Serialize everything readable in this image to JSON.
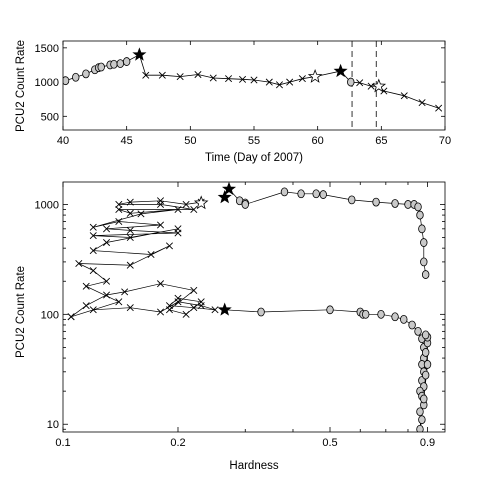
{
  "chart_data": [
    {
      "type": "line",
      "xlabel": "Time (Day of 2007)",
      "ylabel": "PCU2 Count Rate",
      "xlim": [
        40,
        70
      ],
      "ylim": [
        300,
        1600
      ],
      "xticks": [
        "40",
        "45",
        "50",
        "55",
        "60",
        "65",
        "70"
      ],
      "yticks": [
        "500",
        "1000",
        "1500"
      ],
      "vlines": [
        62.7,
        64.6
      ],
      "series": [
        {
          "marker": "circle",
          "x": [
            40.2,
            41.0,
            41.8,
            42.5,
            42.8,
            43.0,
            43.7,
            44.0,
            44.5,
            45.0
          ],
          "y": [
            1020,
            1070,
            1120,
            1180,
            1210,
            1220,
            1250,
            1260,
            1270,
            1300
          ]
        },
        {
          "marker": "x",
          "x": [
            46.5,
            47.8,
            49.2,
            50.6,
            51.8,
            53.0,
            54.1,
            55.0,
            56.2,
            57.0,
            57.8,
            58.8,
            63.3,
            64.2,
            65.2,
            66.8,
            68.2,
            69.5
          ],
          "y": [
            1100,
            1100,
            1080,
            1110,
            1060,
            1050,
            1040,
            1030,
            1000,
            960,
            1000,
            1050,
            990,
            940,
            870,
            800,
            700,
            620
          ]
        },
        {
          "marker": "filled-star",
          "x": [
            46.0,
            61.8
          ],
          "y": [
            1400,
            1160
          ]
        },
        {
          "marker": "open-star",
          "x": [
            59.8,
            64.8
          ],
          "y": [
            1080,
            940
          ]
        },
        {
          "marker": "circle",
          "x": [
            62.6
          ],
          "y": [
            1000
          ]
        }
      ]
    },
    {
      "type": "scatter",
      "xlabel": "Hardness",
      "ylabel": "PCU2 Count Rate",
      "xscale": "log",
      "yscale": "log",
      "xlim": [
        0.1,
        1.0
      ],
      "ylim": [
        8.5,
        1600
      ],
      "xticks": [
        "0.1",
        "0.2",
        "0.5",
        "0.9"
      ],
      "yticks": [
        "10",
        "100",
        "1000"
      ],
      "series": [
        {
          "marker": "x",
          "points": [
            [
              0.105,
              95
            ],
            [
              0.115,
              120
            ],
            [
              0.13,
              150
            ],
            [
              0.145,
              160
            ],
            [
              0.18,
              190
            ],
            [
              0.22,
              165
            ],
            [
              0.19,
              110
            ],
            [
              0.21,
              100
            ],
            [
              0.23,
              130
            ],
            [
              0.2,
              140
            ],
            [
              0.19,
              120
            ],
            [
              0.22,
              115
            ],
            [
              0.25,
              110
            ],
            [
              0.23,
              120
            ],
            [
              0.2,
              130
            ],
            [
              0.18,
              105
            ],
            [
              0.15,
              115
            ],
            [
              0.12,
              110
            ],
            [
              0.105,
              95
            ],
            [
              0.14,
              130
            ],
            [
              0.115,
              180
            ],
            [
              0.13,
              200
            ],
            [
              0.12,
              250
            ],
            [
              0.11,
              290
            ],
            [
              0.15,
              280
            ],
            [
              0.19,
              420
            ],
            [
              0.17,
              350
            ],
            [
              0.12,
              380
            ],
            [
              0.13,
              450
            ],
            [
              0.2,
              600
            ],
            [
              0.15,
              500
            ],
            [
              0.12,
              520
            ],
            [
              0.2,
              550
            ],
            [
              0.15,
              580
            ],
            [
              0.13,
              600
            ],
            [
              0.18,
              650
            ],
            [
              0.14,
              700
            ],
            [
              0.12,
              620
            ],
            [
              0.16,
              820
            ],
            [
              0.2,
              900
            ],
            [
              0.15,
              830
            ],
            [
              0.14,
              900
            ],
            [
              0.22,
              900
            ],
            [
              0.18,
              1000
            ],
            [
              0.14,
              1000
            ],
            [
              0.15,
              1050
            ],
            [
              0.18,
              1080
            ],
            [
              0.21,
              1000
            ],
            [
              0.23,
              1050
            ]
          ]
        },
        {
          "marker": "filled-star",
          "points": [
            [
              0.272,
              1380
            ],
            [
              0.265,
              1160
            ],
            [
              0.265,
              110
            ]
          ]
        },
        {
          "marker": "open-star",
          "points": [
            [
              0.23,
              1030
            ]
          ]
        },
        {
          "marker": "circle",
          "points": [
            [
              0.29,
              1080
            ],
            [
              0.3,
              1030
            ],
            [
              0.3,
              1000
            ],
            [
              0.38,
              1300
            ],
            [
              0.42,
              1250
            ],
            [
              0.46,
              1250
            ],
            [
              0.48,
              1230
            ],
            [
              0.57,
              1100
            ],
            [
              0.66,
              1050
            ],
            [
              0.74,
              1020
            ],
            [
              0.8,
              1000
            ],
            [
              0.83,
              1000
            ],
            [
              0.85,
              950
            ],
            [
              0.86,
              800
            ],
            [
              0.87,
              600
            ],
            [
              0.88,
              450
            ],
            [
              0.88,
              300
            ],
            [
              0.89,
              230
            ],
            [
              0.33,
              105
            ],
            [
              0.5,
              110
            ],
            [
              0.6,
              105
            ],
            [
              0.61,
              100
            ],
            [
              0.62,
              100
            ],
            [
              0.68,
              100
            ],
            [
              0.74,
              95
            ],
            [
              0.78,
              90
            ],
            [
              0.82,
              80
            ],
            [
              0.85,
              70
            ],
            [
              0.87,
              60
            ],
            [
              0.88,
              50
            ],
            [
              0.88,
              40
            ],
            [
              0.87,
              35
            ],
            [
              0.88,
              30
            ],
            [
              0.87,
              25
            ],
            [
              0.88,
              22
            ],
            [
              0.86,
              20
            ],
            [
              0.87,
              18
            ],
            [
              0.88,
              15
            ],
            [
              0.86,
              13
            ],
            [
              0.87,
              11
            ],
            [
              0.86,
              9
            ],
            [
              0.89,
              45
            ],
            [
              0.9,
              55
            ],
            [
              0.89,
              28
            ],
            [
              0.88,
              17
            ],
            [
              0.9,
              35
            ],
            [
              0.9,
              62
            ],
            [
              0.89,
              65
            ]
          ]
        }
      ]
    }
  ]
}
